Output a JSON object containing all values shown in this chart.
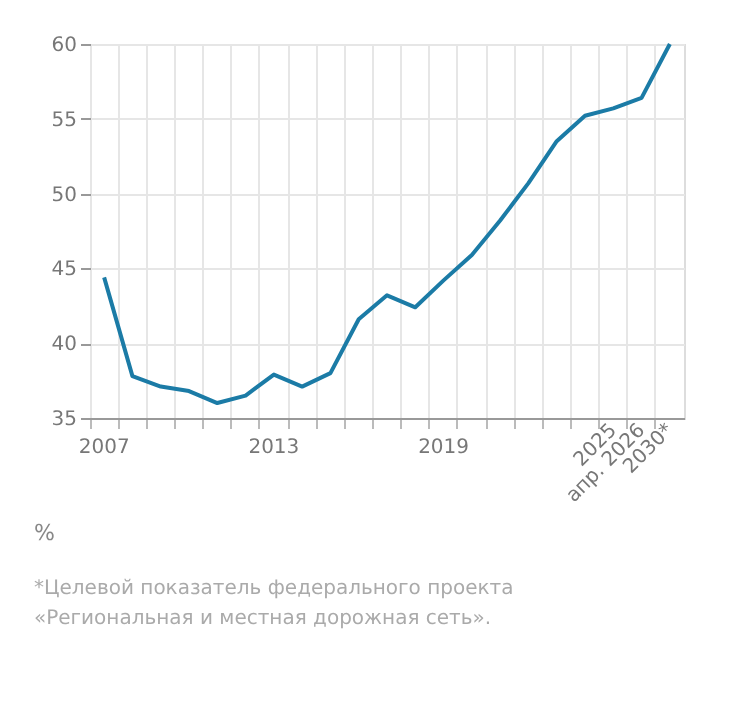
{
  "chart_data": {
    "type": "line",
    "categories": [
      "2007",
      null,
      null,
      null,
      null,
      null,
      "2013",
      null,
      null,
      null,
      null,
      null,
      "2019",
      null,
      null,
      null,
      null,
      null,
      "2025",
      "апр. 2026",
      "2030*"
    ],
    "series": [
      {
        "color": "#1b7ba6",
        "values": [
          44.4,
          37.8,
          37.1,
          36.8,
          36.0,
          36.5,
          37.9,
          37.1,
          38.0,
          41.6,
          43.2,
          42.4,
          44.2,
          45.9,
          48.2,
          50.7,
          53.5,
          55.2,
          55.7,
          56.4,
          60.0
        ]
      }
    ],
    "ylabel": "%",
    "ylim": [
      35,
      60
    ],
    "yticks": [
      35,
      40,
      45,
      50,
      55,
      60
    ],
    "grid": true,
    "marker": "none",
    "line_style": "solid",
    "annotations": [
      "*Целевой показатель федерального проекта\n«Региональная и местная дорожная сеть»."
    ]
  }
}
